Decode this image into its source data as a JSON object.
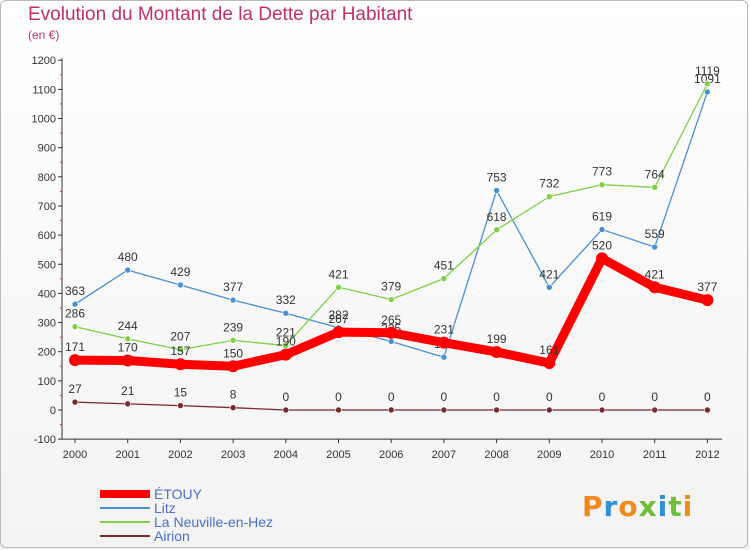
{
  "title": "Evolution du Montant de la Dette par Habitant",
  "subtitle": "(en €)",
  "logo": {
    "letters": [
      "P",
      "r",
      "o",
      "x",
      "i",
      "t",
      "i"
    ],
    "colors": [
      "#f08c1e",
      "#2f8fd8",
      "#f08c1e",
      "#6dbf3a",
      "#2f8fd8",
      "#6dbf3a",
      "#f08c1e"
    ]
  },
  "chart_data": {
    "type": "line",
    "title": "Evolution du Montant de la Dette par Habitant",
    "ylabel": "(en €)",
    "xlabel": "",
    "x": [
      "2000",
      "2001",
      "2002",
      "2003",
      "2004",
      "2005",
      "2006",
      "2007",
      "2008",
      "2009",
      "2010",
      "2011",
      "2012"
    ],
    "ylim": [
      -100,
      1200
    ],
    "yticks": [
      -100,
      0,
      100,
      200,
      300,
      400,
      500,
      600,
      700,
      800,
      900,
      1000,
      1100,
      1200
    ],
    "grid": false,
    "legend": "bottom-left",
    "series": [
      {
        "name": "Litz",
        "color": "#4a90d0",
        "values": [
          363,
          480,
          429,
          377,
          332,
          282,
          235,
          181,
          753,
          421,
          619,
          559,
          1091
        ]
      },
      {
        "name": "La Neuville-en-Hez",
        "color": "#7fd046",
        "values": [
          286,
          244,
          207,
          239,
          221,
          421,
          379,
          451,
          618,
          732,
          773,
          764,
          1119
        ]
      },
      {
        "name": "Airion",
        "color": "#7a2a2a",
        "values": [
          27,
          21,
          15,
          8,
          0,
          0,
          0,
          0,
          0,
          0,
          0,
          0,
          0
        ]
      },
      {
        "name": "ÉTOUY",
        "color": "#ff0000",
        "values": [
          171,
          170,
          157,
          150,
          190,
          267,
          265,
          231,
          199,
          161,
          520,
          421,
          377
        ]
      }
    ],
    "legend_order": [
      "ÉTOUY",
      "Litz",
      "La Neuville-en-Hez",
      "Airion"
    ]
  }
}
